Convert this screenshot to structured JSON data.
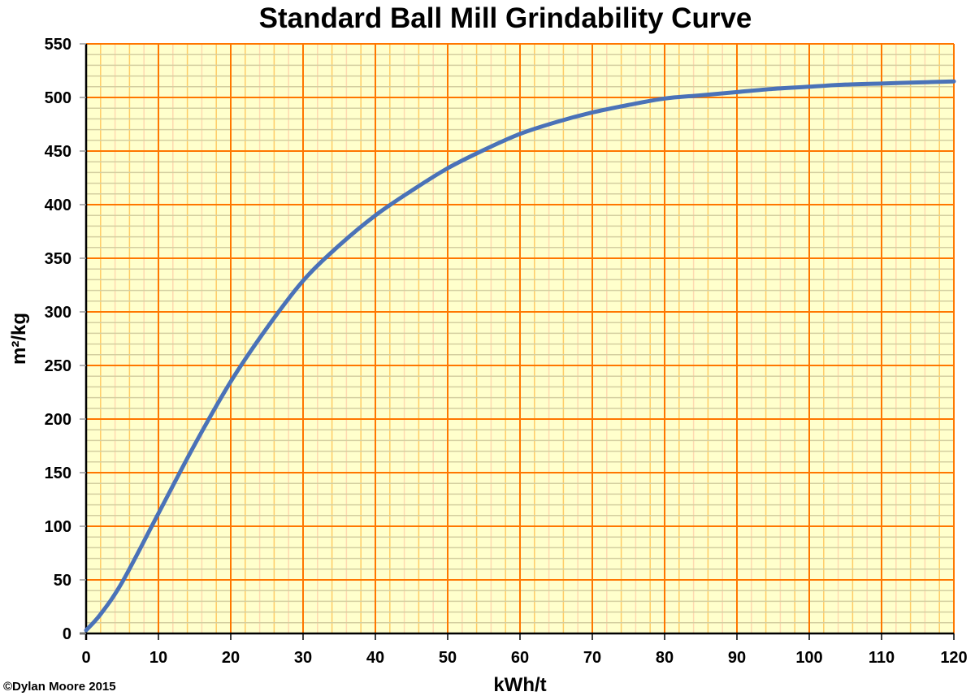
{
  "chart_data": {
    "type": "line",
    "title": "Standard Ball Mill Grindability Curve",
    "xlabel": "kWh/t",
    "ylabel": "m²/kg",
    "xlim": [
      0,
      120
    ],
    "ylim": [
      0,
      550
    ],
    "xticks": [
      0,
      10,
      20,
      30,
      40,
      50,
      60,
      70,
      80,
      90,
      100,
      110,
      120
    ],
    "yticks": [
      0,
      50,
      100,
      150,
      200,
      250,
      300,
      350,
      400,
      450,
      500,
      550
    ],
    "grid": true,
    "x_minor_step": 2,
    "y_minor_step": 10,
    "series": [
      {
        "x": [
          0,
          2,
          5,
          10,
          15,
          20,
          25,
          30,
          35,
          40,
          45,
          50,
          55,
          60,
          65,
          70,
          75,
          80,
          85,
          90,
          95,
          100,
          105,
          110,
          115,
          120
        ],
        "y": [
          3,
          18,
          48,
          112,
          176,
          235,
          285,
          329,
          362,
          390,
          413,
          434,
          451,
          466,
          477,
          486,
          493,
          499,
          502,
          505,
          508,
          510,
          512,
          513,
          514,
          515
        ]
      }
    ],
    "colors": {
      "background": "#FFFFCC",
      "major_grid": "#FF7700",
      "minor_grid_x": "#FFCC66",
      "minor_grid_y": "#D4CFA0",
      "line": "#4A72B8"
    },
    "annotations": [
      "©Dylan Moore 2015"
    ]
  }
}
